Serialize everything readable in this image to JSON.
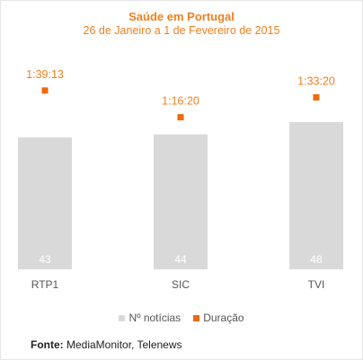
{
  "chart_data": {
    "type": "bar",
    "title": "Saúde em Portugal",
    "subtitle": "26 de Janeiro a 1 de Fevereiro de 2015",
    "categories": [
      "RTP1",
      "SIC",
      "TVI"
    ],
    "series": [
      {
        "name": "Nº notícias",
        "kind": "bar",
        "values": [
          43,
          44,
          48
        ],
        "color": "#d9d9d9"
      },
      {
        "name": "Duração",
        "kind": "marker",
        "values": [
          "1:39:13",
          "1:16:20",
          "1:33:20"
        ],
        "values_seconds": [
          5953,
          4580,
          5600
        ],
        "color": "#ee6a0c"
      }
    ],
    "bar_label_color": "#ffffff",
    "duration_label_color": "#f07f1e",
    "legend_position": "bottom",
    "grid": false
  },
  "source": {
    "label": "Fonte:",
    "text": "MediaMonitor, Telenews"
  }
}
